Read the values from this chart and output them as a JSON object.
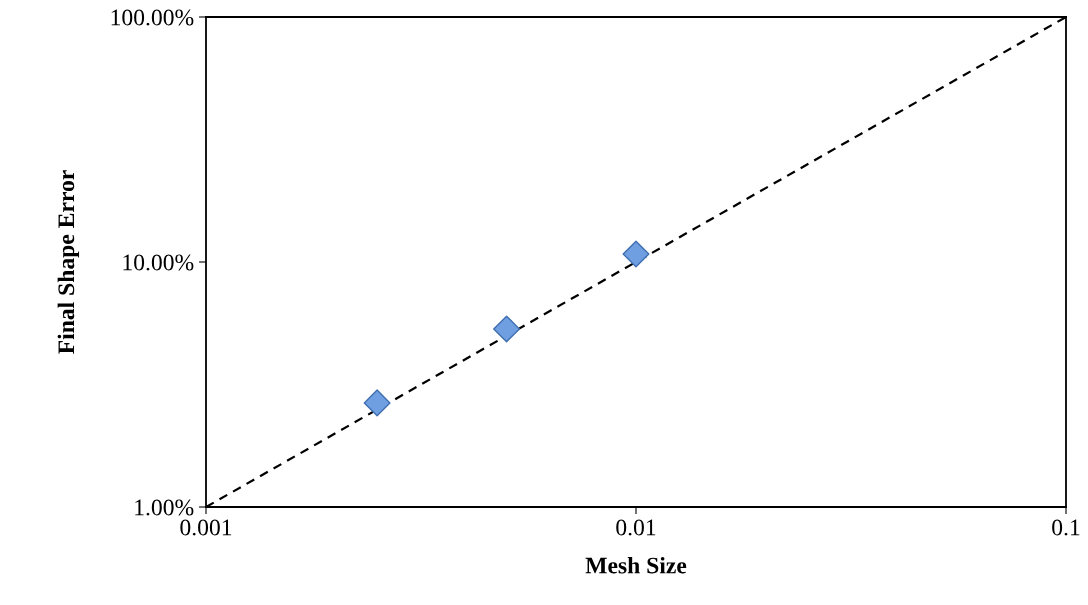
{
  "chart_data": {
    "type": "scatter",
    "xlabel": "Mesh Size",
    "ylabel": "Final Shape Error",
    "log": "xy",
    "grid": false,
    "xlim": [
      0.001,
      0.1
    ],
    "xticks": [
      0.001,
      0.01,
      0.1
    ],
    "ylim": [
      1,
      100
    ],
    "yticks": [
      {
        "value": 1,
        "label": "1.00%"
      },
      {
        "value": 10,
        "label": "10.00%"
      },
      {
        "value": 100,
        "label": "100.00%"
      }
    ],
    "series": [
      {
        "type": "line",
        "color": "#000000",
        "marker": "none",
        "line_style": "dashed",
        "x": [
          0.001,
          0.1
        ],
        "values": [
          1,
          100
        ]
      },
      {
        "color": "#6f9fe0",
        "marker": "diamond",
        "x": [
          0.0025,
          0.005,
          0.01
        ],
        "values": [
          2.66,
          5.33,
          10.78
        ]
      }
    ]
  }
}
